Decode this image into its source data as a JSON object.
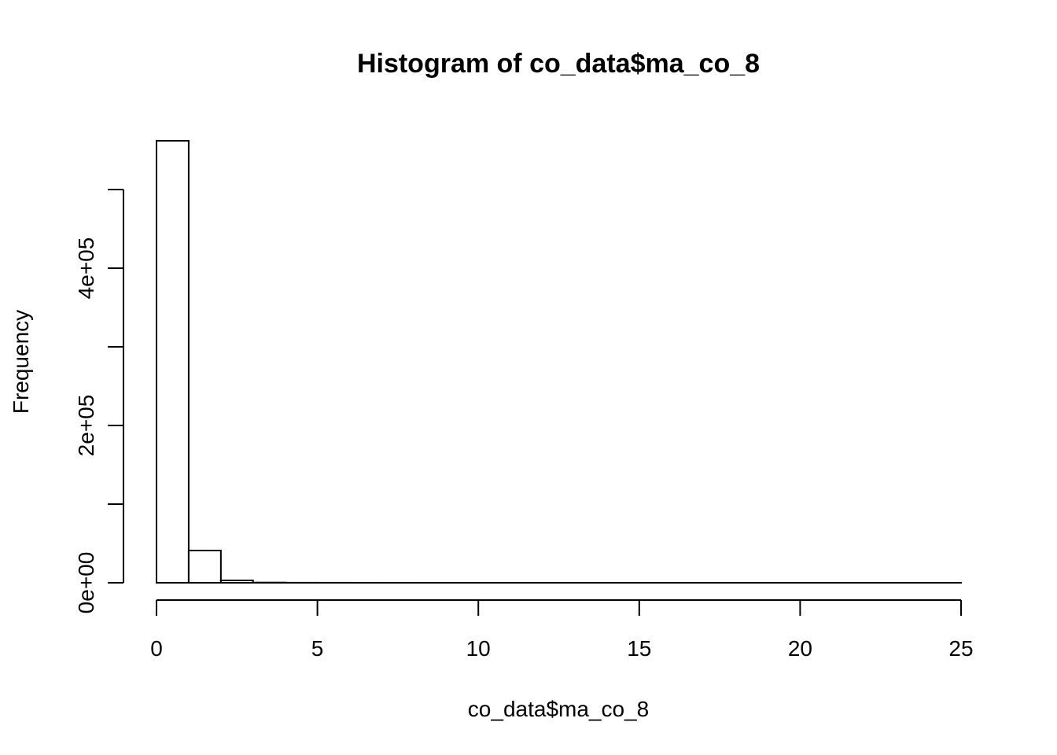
{
  "chart_data": {
    "type": "bar",
    "title": "Histogram of co_data$ma_co_8",
    "xlabel": "co_data$ma_co_8",
    "ylabel": "Frequency",
    "bin_edges": [
      0,
      1,
      2,
      3,
      4,
      5,
      6,
      7,
      8,
      9,
      10,
      11,
      12,
      13,
      14,
      15,
      16,
      17,
      18,
      19,
      20,
      21,
      22,
      23,
      24,
      25
    ],
    "values": [
      562000,
      41000,
      3000,
      300,
      100,
      50,
      30,
      20,
      10,
      10,
      5,
      5,
      3,
      3,
      2,
      2,
      1,
      1,
      1,
      1,
      1,
      1,
      1,
      1,
      1
    ],
    "xlim": [
      0,
      25
    ],
    "ylim": [
      0,
      500000
    ],
    "x_ticks": [
      0,
      5,
      10,
      15,
      20,
      25
    ],
    "x_tick_labels": [
      "0",
      "5",
      "10",
      "15",
      "20",
      "25"
    ],
    "y_ticks": [
      0,
      100000,
      200000,
      300000,
      400000,
      500000
    ],
    "y_tick_labels": [
      "0e+00",
      "",
      "2e+05",
      "",
      "4e+05",
      ""
    ],
    "grid": false
  }
}
